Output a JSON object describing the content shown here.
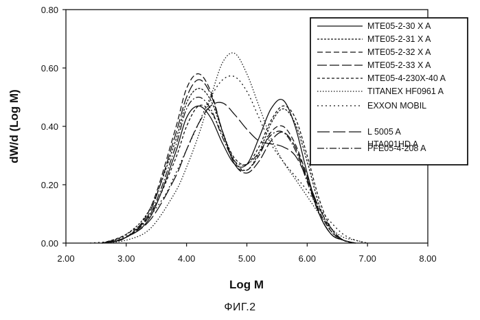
{
  "chart_data": {
    "type": "line",
    "title": "",
    "xlabel": "Log M",
    "ylabel": "dW/d (Log M)",
    "xlim": [
      2.0,
      8.0
    ],
    "ylim": [
      0.0,
      0.8
    ],
    "xticks": [
      "2.00",
      "3.00",
      "4.00",
      "5.00",
      "6.00",
      "7.00",
      "8.00"
    ],
    "yticks": [
      "0.00",
      "0.20",
      "0.40",
      "0.60",
      "0.80"
    ],
    "grid": false,
    "legend_position": "top-right",
    "legend_extra_line": "HTA001HD A",
    "series": [
      {
        "name": "MTE05-2-30  X A",
        "dash": "solid",
        "x": [
          2.6,
          3.0,
          3.4,
          3.8,
          4.0,
          4.2,
          4.4,
          4.6,
          4.8,
          5.0,
          5.2,
          5.4,
          5.6,
          5.8,
          6.0,
          6.2,
          6.4,
          6.6,
          6.8
        ],
        "y": [
          0.0,
          0.02,
          0.09,
          0.3,
          0.43,
          0.47,
          0.43,
          0.34,
          0.27,
          0.27,
          0.36,
          0.46,
          0.49,
          0.4,
          0.24,
          0.1,
          0.03,
          0.01,
          0.0
        ]
      },
      {
        "name": "MTE05-2-31  X A",
        "dash": "3,2",
        "x": [
          2.6,
          3.0,
          3.4,
          3.8,
          4.0,
          4.2,
          4.4,
          4.6,
          4.8,
          5.0,
          5.2,
          5.4,
          5.6,
          5.8,
          6.0,
          6.2,
          6.4,
          6.6,
          6.8
        ],
        "y": [
          0.0,
          0.03,
          0.12,
          0.34,
          0.48,
          0.53,
          0.49,
          0.38,
          0.28,
          0.25,
          0.31,
          0.41,
          0.46,
          0.41,
          0.28,
          0.13,
          0.04,
          0.01,
          0.0
        ]
      },
      {
        "name": "MTE05-2-32  X A",
        "dash": "8,4",
        "x": [
          2.6,
          3.0,
          3.4,
          3.8,
          4.0,
          4.2,
          4.4,
          4.6,
          4.8,
          5.0,
          5.2,
          5.4,
          5.6,
          5.8,
          6.0,
          6.2,
          6.4,
          6.6,
          6.8
        ],
        "y": [
          0.0,
          0.02,
          0.12,
          0.38,
          0.53,
          0.58,
          0.52,
          0.38,
          0.27,
          0.25,
          0.3,
          0.38,
          0.4,
          0.34,
          0.23,
          0.11,
          0.04,
          0.01,
          0.0
        ]
      },
      {
        "name": "MTE05-2-33  X A",
        "dash": "14,4",
        "x": [
          2.6,
          3.0,
          3.4,
          3.8,
          4.0,
          4.2,
          4.4,
          4.6,
          4.8,
          5.0,
          5.2,
          5.4,
          5.6,
          5.8,
          6.0,
          6.2,
          6.4,
          6.6,
          6.8
        ],
        "y": [
          0.0,
          0.02,
          0.11,
          0.36,
          0.5,
          0.56,
          0.51,
          0.38,
          0.27,
          0.24,
          0.28,
          0.35,
          0.38,
          0.33,
          0.22,
          0.1,
          0.03,
          0.01,
          0.0
        ]
      },
      {
        "name": "MTE05-4-230X-40 A",
        "dash": "4,3",
        "x": [
          2.6,
          3.0,
          3.4,
          3.8,
          4.0,
          4.2,
          4.4,
          4.6,
          4.8,
          5.0,
          5.2,
          5.4,
          5.6,
          5.8,
          6.0,
          6.2,
          6.4,
          6.6,
          6.8
        ],
        "y": [
          0.0,
          0.03,
          0.1,
          0.28,
          0.4,
          0.47,
          0.45,
          0.37,
          0.29,
          0.27,
          0.33,
          0.42,
          0.47,
          0.43,
          0.3,
          0.15,
          0.05,
          0.01,
          0.0
        ]
      },
      {
        "name": "TITANEX HF0961 A",
        "dash": "1.5,2.5",
        "x": [
          2.6,
          3.0,
          3.4,
          3.8,
          4.0,
          4.2,
          4.4,
          4.6,
          4.8,
          5.0,
          5.2,
          5.4,
          5.6,
          5.8,
          6.0,
          6.2,
          6.4,
          6.6,
          6.8,
          7.0
        ],
        "y": [
          0.0,
          0.01,
          0.05,
          0.17,
          0.26,
          0.37,
          0.5,
          0.62,
          0.65,
          0.58,
          0.47,
          0.36,
          0.28,
          0.22,
          0.16,
          0.1,
          0.05,
          0.02,
          0.01,
          0.0
        ]
      },
      {
        "name": "EXXON MOBIL",
        "dash": "2,4",
        "x": [
          2.4,
          2.8,
          3.2,
          3.6,
          3.8,
          4.0,
          4.2,
          4.4,
          4.6,
          4.8,
          5.0,
          5.2,
          5.4,
          5.6,
          5.8,
          6.0,
          6.2,
          6.4,
          6.6,
          6.8,
          7.0
        ],
        "y": [
          0.0,
          0.01,
          0.05,
          0.15,
          0.23,
          0.32,
          0.41,
          0.5,
          0.56,
          0.57,
          0.52,
          0.43,
          0.34,
          0.28,
          0.23,
          0.18,
          0.12,
          0.07,
          0.03,
          0.01,
          0.0
        ]
      },
      {
        "name": "L 5005 A",
        "dash": "18,5",
        "x": [
          2.6,
          3.0,
          3.4,
          3.8,
          4.0,
          4.2,
          4.4,
          4.6,
          4.8,
          5.0,
          5.2,
          5.4,
          5.6,
          5.8,
          6.0,
          6.2,
          6.4,
          6.6,
          6.8
        ],
        "y": [
          0.0,
          0.02,
          0.08,
          0.22,
          0.32,
          0.41,
          0.47,
          0.48,
          0.44,
          0.39,
          0.35,
          0.34,
          0.33,
          0.3,
          0.22,
          0.12,
          0.05,
          0.01,
          0.0
        ]
      },
      {
        "name": "PFE05-4-208 A",
        "dash": "10,3,2,3",
        "x": [
          2.6,
          3.0,
          3.4,
          3.8,
          4.0,
          4.2,
          4.4,
          4.6,
          4.8,
          5.0,
          5.2,
          5.4,
          5.6,
          5.8,
          6.0,
          6.2,
          6.4,
          6.6,
          6.8
        ],
        "y": [
          0.0,
          0.02,
          0.1,
          0.32,
          0.46,
          0.5,
          0.46,
          0.36,
          0.28,
          0.27,
          0.31,
          0.37,
          0.38,
          0.32,
          0.21,
          0.1,
          0.03,
          0.01,
          0.0
        ]
      }
    ]
  },
  "caption": "ФИГ.2"
}
